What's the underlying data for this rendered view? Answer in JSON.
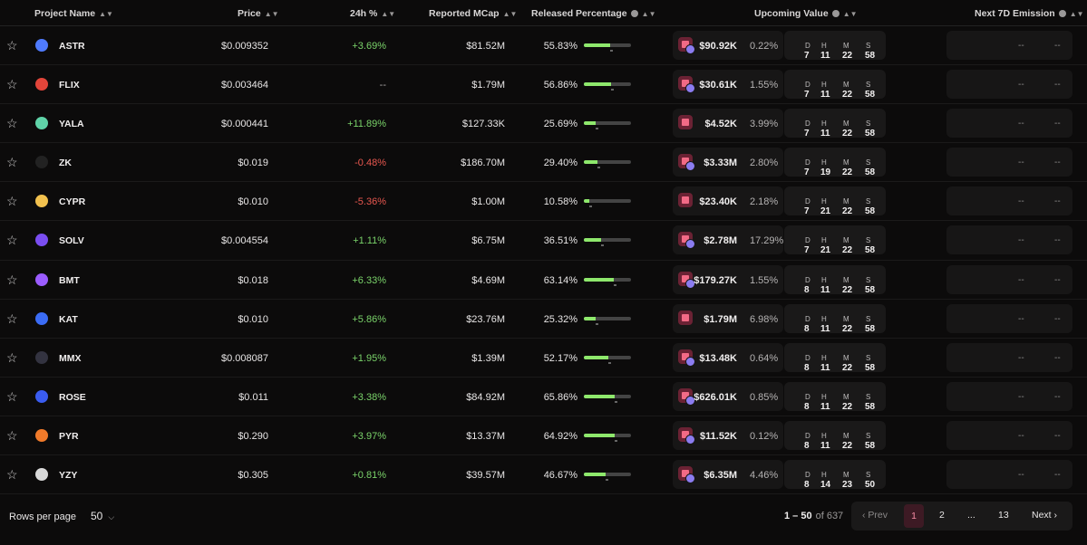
{
  "header": {
    "project_name": "Project Name",
    "price": "Price",
    "change_24h": "24h %",
    "reported_mcap": "Reported MCap",
    "released_percentage": "Released Percentage",
    "upcoming_value": "Upcoming Value",
    "next_7d_emission": "Next 7D Emission"
  },
  "rows": [
    {
      "symbol": "ASTR",
      "price": "$0.009352",
      "change": "+3.69%",
      "mcap": "$81.52M",
      "released": "55.83%",
      "released_frac": 0.5583,
      "upcoming": "$90.92K",
      "upcoming_pct": "0.22%",
      "d": "7",
      "h": "11",
      "m": "22",
      "s": "58",
      "logo_color": "#4f7bff",
      "change_dir": "pos",
      "uv_icon": "token-pair-icon"
    },
    {
      "symbol": "FLIX",
      "price": "$0.003464",
      "change": "--",
      "mcap": "$1.79M",
      "released": "56.86%",
      "released_frac": 0.5686,
      "upcoming": "$30.61K",
      "upcoming_pct": "1.55%",
      "d": "7",
      "h": "11",
      "m": "22",
      "s": "58",
      "logo_color": "#e2453a",
      "change_dir": "neu",
      "uv_icon": "token-pair-icon"
    },
    {
      "symbol": "YALA",
      "price": "$0.000441",
      "change": "+11.89%",
      "mcap": "$127.33K",
      "released": "25.69%",
      "released_frac": 0.2569,
      "upcoming": "$4.52K",
      "upcoming_pct": "3.99%",
      "d": "7",
      "h": "11",
      "m": "22",
      "s": "58",
      "logo_color": "#5fd3a8",
      "change_dir": "pos",
      "uv_icon": "chart-block-icon"
    },
    {
      "symbol": "ZK",
      "price": "$0.019",
      "change": "-0.48%",
      "mcap": "$186.70M",
      "released": "29.40%",
      "released_frac": 0.294,
      "upcoming": "$3.33M",
      "upcoming_pct": "2.80%",
      "d": "7",
      "h": "19",
      "m": "22",
      "s": "58",
      "logo_color": "#222222",
      "change_dir": "neg",
      "uv_icon": "token-pair-icon"
    },
    {
      "symbol": "CYPR",
      "price": "$0.010",
      "change": "-5.36%",
      "mcap": "$1.00M",
      "released": "10.58%",
      "released_frac": 0.1058,
      "upcoming": "$23.40K",
      "upcoming_pct": "2.18%",
      "d": "7",
      "h": "21",
      "m": "22",
      "s": "58",
      "logo_color": "#f2c14e",
      "change_dir": "neg",
      "uv_icon": "chart-block-icon"
    },
    {
      "symbol": "SOLV",
      "price": "$0.004554",
      "change": "+1.11%",
      "mcap": "$6.75M",
      "released": "36.51%",
      "released_frac": 0.3651,
      "upcoming": "$2.78M",
      "upcoming_pct": "17.29%",
      "d": "7",
      "h": "21",
      "m": "22",
      "s": "58",
      "logo_color": "#7a4df0",
      "change_dir": "pos",
      "uv_icon": "token-pair-icon"
    },
    {
      "symbol": "BMT",
      "price": "$0.018",
      "change": "+6.33%",
      "mcap": "$4.69M",
      "released": "63.14%",
      "released_frac": 0.6314,
      "upcoming": "$179.27K",
      "upcoming_pct": "1.55%",
      "d": "8",
      "h": "11",
      "m": "22",
      "s": "58",
      "logo_color": "#9b5cff",
      "change_dir": "pos",
      "uv_icon": "token-pair-icon"
    },
    {
      "symbol": "KAT",
      "price": "$0.010",
      "change": "+5.86%",
      "mcap": "$23.76M",
      "released": "25.32%",
      "released_frac": 0.2532,
      "upcoming": "$1.79M",
      "upcoming_pct": "6.98%",
      "d": "8",
      "h": "11",
      "m": "22",
      "s": "58",
      "logo_color": "#3b6cf5",
      "change_dir": "pos",
      "uv_icon": "chart-block-icon"
    },
    {
      "symbol": "MMX",
      "price": "$0.008087",
      "change": "+1.95%",
      "mcap": "$1.39M",
      "released": "52.17%",
      "released_frac": 0.5217,
      "upcoming": "$13.48K",
      "upcoming_pct": "0.64%",
      "d": "8",
      "h": "11",
      "m": "22",
      "s": "58",
      "logo_color": "#333340",
      "change_dir": "pos",
      "uv_icon": "token-pair-icon"
    },
    {
      "symbol": "ROSE",
      "price": "$0.011",
      "change": "+3.38%",
      "mcap": "$84.92M",
      "released": "65.86%",
      "released_frac": 0.6586,
      "upcoming": "$626.01K",
      "upcoming_pct": "0.85%",
      "d": "8",
      "h": "11",
      "m": "22",
      "s": "58",
      "logo_color": "#3a5cf0",
      "change_dir": "pos",
      "uv_icon": "token-pair-icon"
    },
    {
      "symbol": "PYR",
      "price": "$0.290",
      "change": "+3.97%",
      "mcap": "$13.37M",
      "released": "64.92%",
      "released_frac": 0.6492,
      "upcoming": "$11.52K",
      "upcoming_pct": "0.12%",
      "d": "8",
      "h": "11",
      "m": "22",
      "s": "58",
      "logo_color": "#f07a2a",
      "change_dir": "pos",
      "uv_icon": "token-pair-icon"
    },
    {
      "symbol": "YZY",
      "price": "$0.305",
      "change": "+0.81%",
      "mcap": "$39.57M",
      "released": "46.67%",
      "released_frac": 0.4667,
      "upcoming": "$6.35M",
      "upcoming_pct": "4.46%",
      "d": "8",
      "h": "14",
      "m": "23",
      "s": "50",
      "logo_color": "#d9d9d9",
      "change_dir": "pos",
      "uv_icon": "token-pair-icon"
    }
  ],
  "countdown_units": {
    "d": "D",
    "h": "H",
    "m": "M",
    "s": "S"
  },
  "emission_placeholder": "--",
  "footer": {
    "rows_per_page_label": "Rows per page",
    "rows_per_page_value": "50",
    "range_current": "1 – 50",
    "range_total": "of 637",
    "prev": "‹ Prev",
    "pages": [
      "1",
      "2",
      "...",
      "13"
    ],
    "next": "Next ›"
  }
}
